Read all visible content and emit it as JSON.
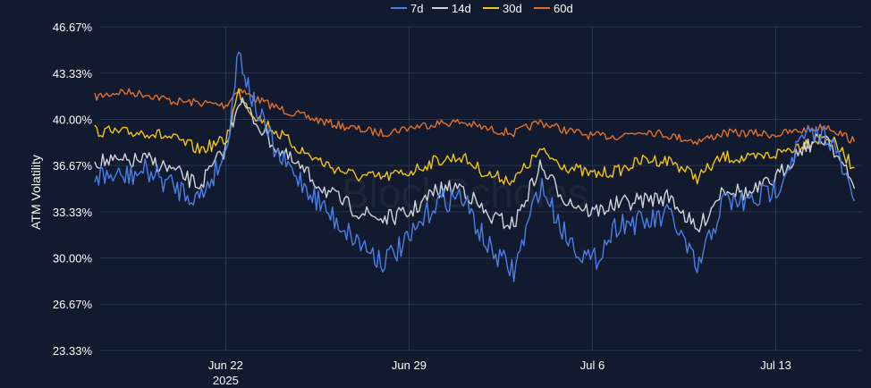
{
  "chart_data": {
    "type": "line",
    "ylabel": "ATM Volatility",
    "xlabel": "",
    "watermark": "BlockScholes",
    "y_ticks": [
      "23.33%",
      "26.67%",
      "30.00%",
      "33.33%",
      "36.67%",
      "40.00%",
      "43.33%",
      "46.67%"
    ],
    "y_tick_values": [
      23.33,
      26.67,
      30.0,
      33.33,
      36.67,
      40.0,
      43.33,
      46.67
    ],
    "ylim": [
      23.33,
      46.67
    ],
    "x_ticks": [
      {
        "label": "Jun 22",
        "sublabel": "2025",
        "value": "2025-06-22"
      },
      {
        "label": "Jun 29",
        "sublabel": "",
        "value": "2025-06-29"
      },
      {
        "label": "Jul 6",
        "sublabel": "",
        "value": "2025-07-06"
      },
      {
        "label": "Jul 13",
        "sublabel": "",
        "value": "2025-07-13"
      }
    ],
    "xlim": [
      "2025-06-17T05:00",
      "2025-07-16T07:00"
    ],
    "grid": true,
    "legend_position": "top-center",
    "series": [
      {
        "name": "7d",
        "color": "#4a7fe8",
        "points": [
          [
            "2025-06-17",
            36.0
          ],
          [
            "2025-06-18",
            35.8
          ],
          [
            "2025-06-19",
            36.3
          ],
          [
            "2025-06-20",
            35.2
          ],
          [
            "2025-06-21",
            34.3
          ],
          [
            "2025-06-22",
            37.6
          ],
          [
            "2025-06-22T12:00",
            45.0
          ],
          [
            "2025-06-23",
            41.5
          ],
          [
            "2025-06-24",
            37.3
          ],
          [
            "2025-06-25",
            35.3
          ],
          [
            "2025-06-26",
            33.1
          ],
          [
            "2025-06-27",
            31.3
          ],
          [
            "2025-06-28",
            29.8
          ],
          [
            "2025-06-29",
            31.2
          ],
          [
            "2025-06-30",
            34.0
          ],
          [
            "2025-07-01",
            34.5
          ],
          [
            "2025-07-02",
            30.8
          ],
          [
            "2025-07-03",
            29.0
          ],
          [
            "2025-07-04",
            35.3
          ],
          [
            "2025-07-05",
            31.6
          ],
          [
            "2025-07-06",
            29.6
          ],
          [
            "2025-07-07",
            32.6
          ],
          [
            "2025-07-08",
            32.5
          ],
          [
            "2025-07-09",
            33.1
          ],
          [
            "2025-07-10",
            29.1
          ],
          [
            "2025-07-11",
            34.1
          ],
          [
            "2025-07-12",
            34.0
          ],
          [
            "2025-07-13",
            35.0
          ],
          [
            "2025-07-14",
            38.6
          ],
          [
            "2025-07-15",
            39.0
          ],
          [
            "2025-07-16",
            34.1
          ]
        ]
      },
      {
        "name": "14d",
        "color": "#d0d4dc",
        "points": [
          [
            "2025-06-17",
            37.0
          ],
          [
            "2025-06-18",
            36.9
          ],
          [
            "2025-06-19",
            37.1
          ],
          [
            "2025-06-20",
            36.3
          ],
          [
            "2025-06-21",
            35.2
          ],
          [
            "2025-06-22",
            37.9
          ],
          [
            "2025-06-22T12:00",
            41.5
          ],
          [
            "2025-06-23",
            40.2
          ],
          [
            "2025-06-24",
            37.8
          ],
          [
            "2025-06-25",
            36.2
          ],
          [
            "2025-06-26",
            34.6
          ],
          [
            "2025-06-27",
            33.4
          ],
          [
            "2025-06-28",
            32.8
          ],
          [
            "2025-06-29",
            33.2
          ],
          [
            "2025-06-30",
            34.8
          ],
          [
            "2025-07-01",
            35.2
          ],
          [
            "2025-07-02",
            33.0
          ],
          [
            "2025-07-03",
            32.4
          ],
          [
            "2025-07-04",
            36.6
          ],
          [
            "2025-07-05",
            34.2
          ],
          [
            "2025-07-06",
            33.3
          ],
          [
            "2025-07-07",
            33.9
          ],
          [
            "2025-07-08",
            34.2
          ],
          [
            "2025-07-09",
            34.4
          ],
          [
            "2025-07-10",
            31.9
          ],
          [
            "2025-07-11",
            35.1
          ],
          [
            "2025-07-12",
            34.6
          ],
          [
            "2025-07-13",
            35.7
          ],
          [
            "2025-07-14",
            38.0
          ],
          [
            "2025-07-15",
            38.7
          ],
          [
            "2025-07-16",
            35.0
          ]
        ]
      },
      {
        "name": "30d",
        "color": "#f2c318",
        "points": [
          [
            "2025-06-17",
            39.2
          ],
          [
            "2025-06-18",
            39.0
          ],
          [
            "2025-06-19",
            39.1
          ],
          [
            "2025-06-20",
            38.6
          ],
          [
            "2025-06-21",
            37.8
          ],
          [
            "2025-06-22",
            38.5
          ],
          [
            "2025-06-22T12:00",
            42.0
          ],
          [
            "2025-06-23",
            40.5
          ],
          [
            "2025-06-24",
            39.0
          ],
          [
            "2025-06-25",
            37.6
          ],
          [
            "2025-06-26",
            36.6
          ],
          [
            "2025-06-27",
            35.9
          ],
          [
            "2025-06-28",
            35.8
          ],
          [
            "2025-06-29",
            36.2
          ],
          [
            "2025-06-30",
            37.0
          ],
          [
            "2025-07-01",
            37.3
          ],
          [
            "2025-07-02",
            36.0
          ],
          [
            "2025-07-03",
            35.6
          ],
          [
            "2025-07-04",
            37.7
          ],
          [
            "2025-07-05",
            36.6
          ],
          [
            "2025-07-06",
            36.0
          ],
          [
            "2025-07-07",
            36.3
          ],
          [
            "2025-07-08",
            37.1
          ],
          [
            "2025-07-09",
            37.0
          ],
          [
            "2025-07-10",
            35.8
          ],
          [
            "2025-07-11",
            37.3
          ],
          [
            "2025-07-12",
            37.1
          ],
          [
            "2025-07-13",
            37.5
          ],
          [
            "2025-07-14",
            38.2
          ],
          [
            "2025-07-15",
            38.8
          ],
          [
            "2025-07-16",
            36.5
          ]
        ]
      },
      {
        "name": "60d",
        "color": "#e0702c",
        "points": [
          [
            "2025-06-17",
            41.6
          ],
          [
            "2025-06-18",
            42.0
          ],
          [
            "2025-06-19",
            41.8
          ],
          [
            "2025-06-20",
            41.3
          ],
          [
            "2025-06-21",
            41.2
          ],
          [
            "2025-06-22",
            41.0
          ],
          [
            "2025-06-22T12:00",
            42.2
          ],
          [
            "2025-06-23",
            41.6
          ],
          [
            "2025-06-24",
            40.8
          ],
          [
            "2025-06-25",
            40.2
          ],
          [
            "2025-06-26",
            39.7
          ],
          [
            "2025-06-27",
            39.3
          ],
          [
            "2025-06-28",
            39.0
          ],
          [
            "2025-06-29",
            39.4
          ],
          [
            "2025-06-30",
            39.7
          ],
          [
            "2025-07-01",
            39.8
          ],
          [
            "2025-07-02",
            39.3
          ],
          [
            "2025-07-03",
            39.0
          ],
          [
            "2025-07-04",
            39.8
          ],
          [
            "2025-07-05",
            39.2
          ],
          [
            "2025-07-06",
            38.8
          ],
          [
            "2025-07-07",
            38.8
          ],
          [
            "2025-07-08",
            39.2
          ],
          [
            "2025-07-09",
            38.8
          ],
          [
            "2025-07-10",
            38.4
          ],
          [
            "2025-07-11",
            39.0
          ],
          [
            "2025-07-12",
            39.0
          ],
          [
            "2025-07-13",
            38.9
          ],
          [
            "2025-07-14",
            39.2
          ],
          [
            "2025-07-15",
            39.5
          ],
          [
            "2025-07-16",
            38.4
          ]
        ]
      }
    ]
  }
}
